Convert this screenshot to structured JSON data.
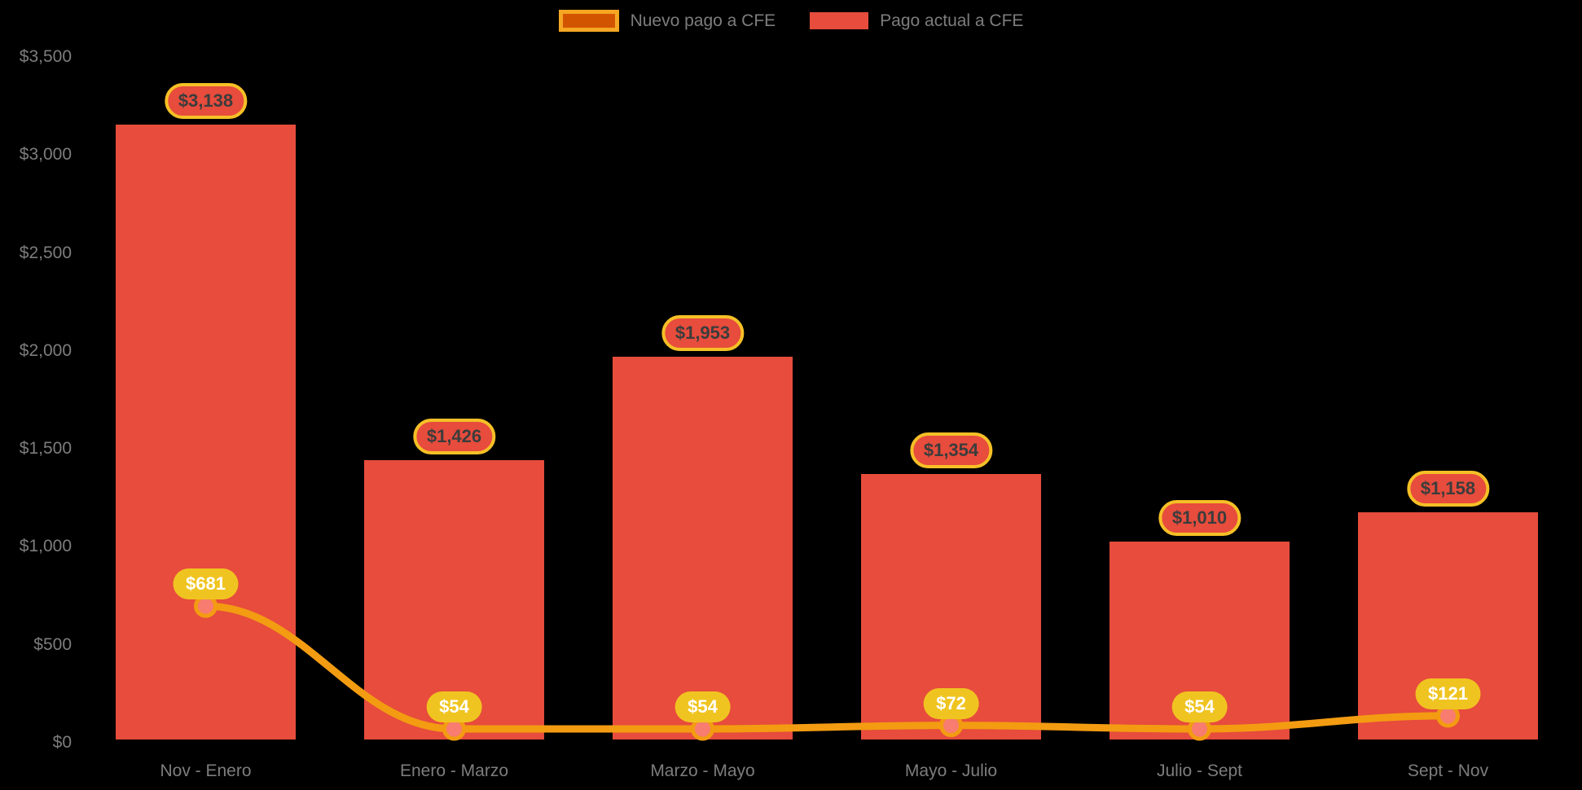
{
  "colors": {
    "background": "#000000",
    "bar": "#E74C3C",
    "line": "#F39C12",
    "marker_fill": "#F87C6F",
    "marker_stroke": "#F39C12",
    "legend_line_swatch_fill": "#D35400",
    "legend_line_swatch_border": "#F5A623",
    "legend_bar_swatch": "#E74C3C",
    "bar_label_bg": "#E74C3C",
    "bar_label_border": "#F5C026",
    "bar_label_text": "#3C3C3C",
    "point_label_bg": "#F0C420",
    "point_label_text": "#FFFFFF",
    "axis_text": "#7D7D7D",
    "legend_text": "#7D7D7D"
  },
  "legend": {
    "items": [
      {
        "label": "Nuevo pago a CFE",
        "series": "line"
      },
      {
        "label": "Pago actual a CFE",
        "series": "bar"
      }
    ]
  },
  "chart_data": {
    "type": "bar",
    "subtype": "bar-and-line-combo",
    "title": "",
    "xlabel": "",
    "ylabel": "",
    "categories": [
      "Nov - Enero",
      "Enero - Marzo",
      "Marzo - Mayo",
      "Mayo - Julio",
      "Julio - Sept",
      "Sept - Nov"
    ],
    "series": [
      {
        "name": "Pago actual a CFE",
        "type": "bar",
        "values": [
          3138,
          1426,
          1953,
          1354,
          1010,
          1158
        ],
        "labels": [
          "$3,138",
          "$1,426",
          "$1,953",
          "$1,354",
          "$1,010",
          "$1,158"
        ]
      },
      {
        "name": "Nuevo pago a CFE",
        "type": "line",
        "values": [
          681,
          54,
          54,
          72,
          54,
          121
        ],
        "labels": [
          "$681",
          "$54",
          "$54",
          "$72",
          "$54",
          "$121"
        ]
      }
    ],
    "y_axis": {
      "min": 0,
      "max": 3500,
      "tick_step": 500,
      "ticks": [
        0,
        500,
        1000,
        1500,
        2000,
        2500,
        3000,
        3500
      ],
      "tick_labels": [
        "$0",
        "$500",
        "$1,000",
        "$1,500",
        "$2,000",
        "$2,500",
        "$3,000",
        "$3,500"
      ]
    },
    "grid": false,
    "legend_position": "top-center"
  }
}
